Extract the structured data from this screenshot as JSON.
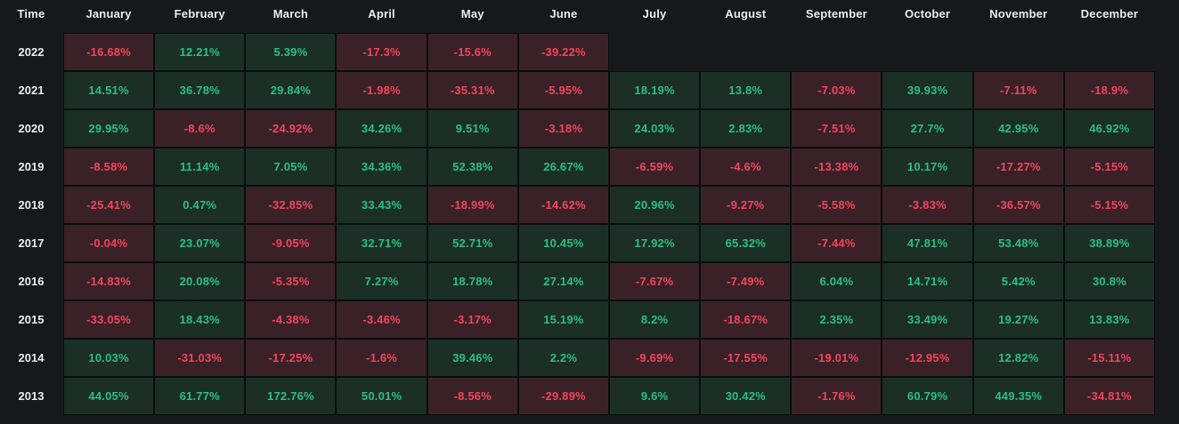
{
  "page": {
    "background": "#17181b"
  },
  "colors": {
    "positive_text": "#2ebd85",
    "negative_text": "#f1455a",
    "positive_cell_bg": "#1b2f27",
    "negative_cell_bg": "#3a2128",
    "header_text": "#eaecef",
    "cell_border": "#0b0d10"
  },
  "table": {
    "columns": [
      "Time",
      "January",
      "February",
      "March",
      "April",
      "May",
      "June",
      "July",
      "August",
      "September",
      "October",
      "November",
      "December"
    ],
    "rows": [
      {
        "year": "2022",
        "cells": [
          "-16.68%",
          "12.21%",
          "5.39%",
          "-17.3%",
          "-15.6%",
          "-39.22%",
          "",
          "",
          "",
          "",
          "",
          ""
        ]
      },
      {
        "year": "2021",
        "cells": [
          "14.51%",
          "36.78%",
          "29.84%",
          "-1.98%",
          "-35.31%",
          "-5.95%",
          "18.19%",
          "13.8%",
          "-7.03%",
          "39.93%",
          "-7.11%",
          "-18.9%"
        ]
      },
      {
        "year": "2020",
        "cells": [
          "29.95%",
          "-8.6%",
          "-24.92%",
          "34.26%",
          "9.51%",
          "-3.18%",
          "24.03%",
          "2.83%",
          "-7.51%",
          "27.7%",
          "42.95%",
          "46.92%"
        ]
      },
      {
        "year": "2019",
        "cells": [
          "-8.58%",
          "11.14%",
          "7.05%",
          "34.36%",
          "52.38%",
          "26.67%",
          "-6.59%",
          "-4.6%",
          "-13.38%",
          "10.17%",
          "-17.27%",
          "-5.15%"
        ]
      },
      {
        "year": "2018",
        "cells": [
          "-25.41%",
          "0.47%",
          "-32.85%",
          "33.43%",
          "-18.99%",
          "-14.62%",
          "20.96%",
          "-9.27%",
          "-5.58%",
          "-3.83%",
          "-36.57%",
          "-5.15%"
        ]
      },
      {
        "year": "2017",
        "cells": [
          "-0.04%",
          "23.07%",
          "-9.05%",
          "32.71%",
          "52.71%",
          "10.45%",
          "17.92%",
          "65.32%",
          "-7.44%",
          "47.81%",
          "53.48%",
          "38.89%"
        ]
      },
      {
        "year": "2016",
        "cells": [
          "-14.83%",
          "20.08%",
          "-5.35%",
          "7.27%",
          "18.78%",
          "27.14%",
          "-7.67%",
          "-7.49%",
          "6.04%",
          "14.71%",
          "5.42%",
          "30.8%"
        ]
      },
      {
        "year": "2015",
        "cells": [
          "-33.05%",
          "18.43%",
          "-4.38%",
          "-3.46%",
          "-3.17%",
          "15.19%",
          "8.2%",
          "-18.67%",
          "2.35%",
          "33.49%",
          "19.27%",
          "13.83%"
        ]
      },
      {
        "year": "2014",
        "cells": [
          "10.03%",
          "-31.03%",
          "-17.25%",
          "-1.6%",
          "39.46%",
          "2.2%",
          "-9.69%",
          "-17.55%",
          "-19.01%",
          "-12.95%",
          "12.82%",
          "-15.11%"
        ]
      },
      {
        "year": "2013",
        "cells": [
          "44.05%",
          "61.77%",
          "172.76%",
          "50.01%",
          "-8.56%",
          "-29.89%",
          "9.6%",
          "30.42%",
          "-1.76%",
          "60.79%",
          "449.35%",
          "-34.81%"
        ]
      }
    ]
  },
  "chart_data": {
    "type": "heatmap",
    "unit": "%",
    "x_categories": [
      "January",
      "February",
      "March",
      "April",
      "May",
      "June",
      "July",
      "August",
      "September",
      "October",
      "November",
      "December"
    ],
    "y_categories": [
      "2022",
      "2021",
      "2020",
      "2019",
      "2018",
      "2017",
      "2016",
      "2015",
      "2014",
      "2013"
    ],
    "corner_label": "Time",
    "legend": "none",
    "color_rule": "green for positive returns, red for negative returns",
    "values": [
      [
        -16.68,
        12.21,
        5.39,
        -17.3,
        -15.6,
        -39.22,
        null,
        null,
        null,
        null,
        null,
        null
      ],
      [
        14.51,
        36.78,
        29.84,
        -1.98,
        -35.31,
        -5.95,
        18.19,
        13.8,
        -7.03,
        39.93,
        -7.11,
        -18.9
      ],
      [
        29.95,
        -8.6,
        -24.92,
        34.26,
        9.51,
        -3.18,
        24.03,
        2.83,
        -7.51,
        27.7,
        42.95,
        46.92
      ],
      [
        -8.58,
        11.14,
        7.05,
        34.36,
        52.38,
        26.67,
        -6.59,
        -4.6,
        -13.38,
        10.17,
        -17.27,
        -5.15
      ],
      [
        -25.41,
        0.47,
        -32.85,
        33.43,
        -18.99,
        -14.62,
        20.96,
        -9.27,
        -5.58,
        -3.83,
        -36.57,
        -5.15
      ],
      [
        -0.04,
        23.07,
        -9.05,
        32.71,
        52.71,
        10.45,
        17.92,
        65.32,
        -7.44,
        47.81,
        53.48,
        38.89
      ],
      [
        -14.83,
        20.08,
        -5.35,
        7.27,
        18.78,
        27.14,
        -7.67,
        -7.49,
        6.04,
        14.71,
        5.42,
        30.8
      ],
      [
        -33.05,
        18.43,
        -4.38,
        -3.46,
        -3.17,
        15.19,
        8.2,
        -18.67,
        2.35,
        33.49,
        19.27,
        13.83
      ],
      [
        10.03,
        -31.03,
        -17.25,
        -1.6,
        39.46,
        2.2,
        -9.69,
        -17.55,
        -19.01,
        -12.95,
        12.82,
        -15.11
      ],
      [
        44.05,
        61.77,
        172.76,
        50.01,
        -8.56,
        -29.89,
        9.6,
        30.42,
        -1.76,
        60.79,
        449.35,
        -34.81
      ]
    ]
  }
}
